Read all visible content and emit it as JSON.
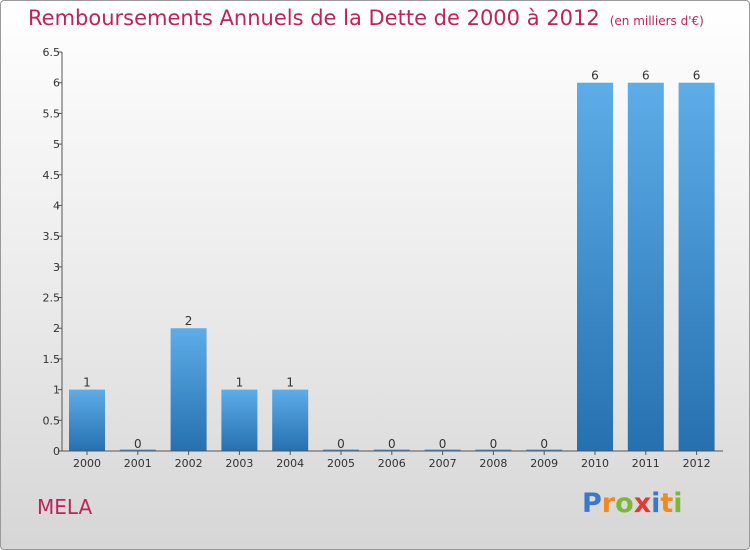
{
  "title": "Remboursements Annuels de la Dette de 2000 à 2012",
  "subtitle": "(en milliers d'€)",
  "commune": "MELA",
  "logo": {
    "text": "Proxiti",
    "letters": [
      "P",
      "r",
      "o",
      "x",
      "i",
      "t",
      "i"
    ],
    "colors": [
      "#3a78c9",
      "#f08a1e",
      "#7ab83a",
      "#e23a2e",
      "#3a78c9",
      "#f08a1e",
      "#7ab83a"
    ]
  },
  "chart_data": {
    "type": "bar",
    "categories": [
      "2000",
      "2001",
      "2002",
      "2003",
      "2004",
      "2005",
      "2006",
      "2007",
      "2008",
      "2009",
      "2010",
      "2011",
      "2012"
    ],
    "values": [
      1,
      0,
      2,
      1,
      1,
      0,
      0,
      0,
      0,
      0,
      6,
      6,
      6
    ],
    "data_labels": [
      "1",
      "0",
      "2",
      "1",
      "1",
      "0",
      "0",
      "0",
      "0",
      "0",
      "6",
      "6",
      "6"
    ],
    "yticks": [
      "0",
      "0.5",
      "1",
      "1.5",
      "2",
      "2.5",
      "3",
      "3.5",
      "4",
      "4.5",
      "5",
      "5.5",
      "6",
      "6.5"
    ],
    "ylim": [
      0,
      6.5
    ],
    "grid": false,
    "colors": {
      "bar_top": "#5dade8",
      "bar_bottom": "#2670b0",
      "axis": "#555555"
    }
  }
}
